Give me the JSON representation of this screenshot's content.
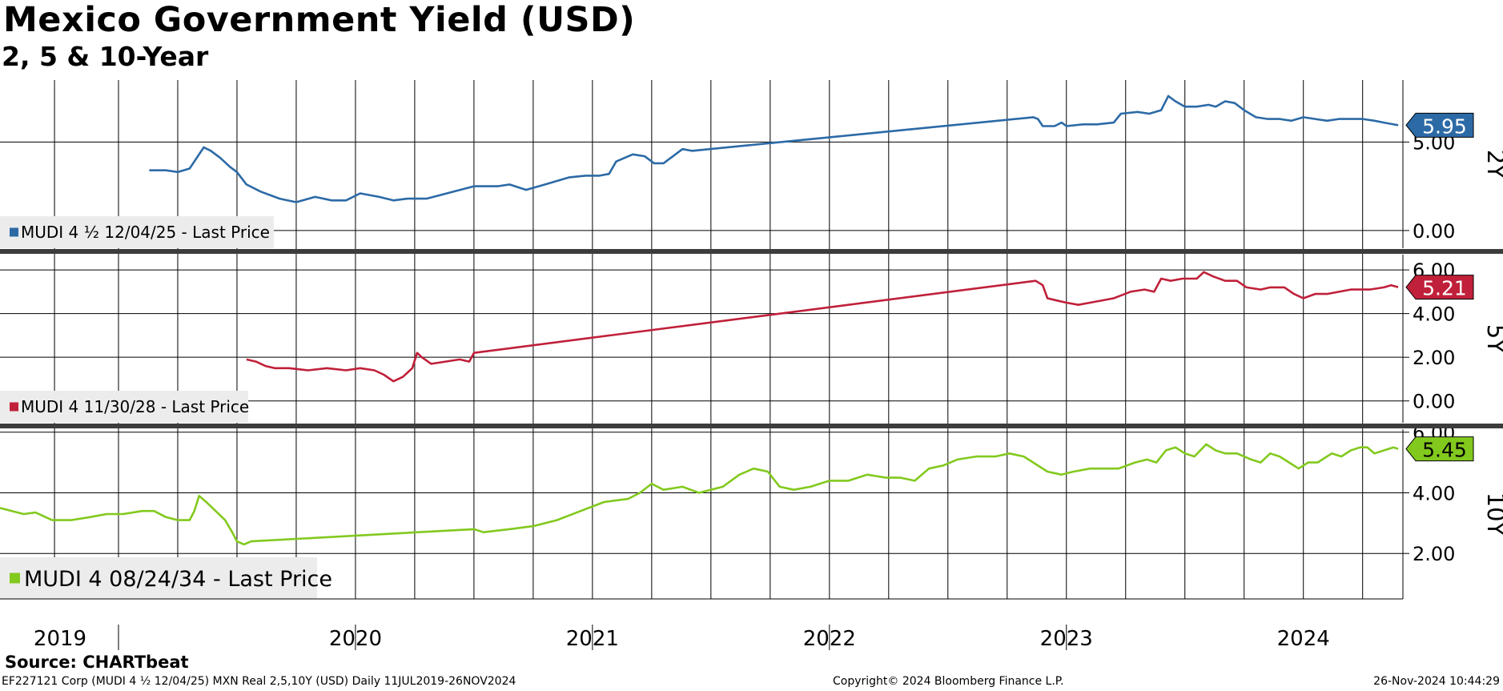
{
  "header": {
    "title": "Mexico Government Yield (USD)",
    "subtitle": "2, 5 & 10-Year",
    "source": "Source: CHARTbeat"
  },
  "footer": {
    "left": "EF227121 Corp (MUDI 4 ½ 12/04/25) MXN Real 2,5,10Y (USD)  Daily 11JUL2019-26NOV2024",
    "center": "Copyright© 2024 Bloomberg Finance L.P.",
    "right": "26-Nov-2024 10:44:29"
  },
  "chart_data": [
    {
      "type": "line",
      "panel_label": "2Y",
      "legend": "MUDI 4 ½ 12/04/25 - Last Price",
      "color": "#2c6aa6",
      "last_value": 5.95,
      "last_label": "5.95",
      "ylim": [
        -1.0,
        8.5
      ],
      "yticks": [
        0.0,
        5.0
      ],
      "ytick_labels": [
        "0.00",
        "5.00"
      ],
      "series": [
        {
          "name": "MUDI 4 ½ 12/04/25",
          "points": [
            [
              2019.63,
              3.4
            ],
            [
              2019.7,
              3.4
            ],
            [
              2019.75,
              3.3
            ],
            [
              2019.8,
              3.5
            ],
            [
              2019.84,
              4.3
            ],
            [
              2019.86,
              4.7
            ],
            [
              2019.89,
              4.5
            ],
            [
              2019.93,
              4.1
            ],
            [
              2019.97,
              3.6
            ],
            [
              2020.0,
              3.3
            ],
            [
              2020.04,
              2.6
            ],
            [
              2020.1,
              2.2
            ],
            [
              2020.18,
              1.8
            ],
            [
              2020.25,
              1.6
            ],
            [
              2020.33,
              1.9
            ],
            [
              2020.4,
              1.7
            ],
            [
              2020.46,
              1.7
            ],
            [
              2020.52,
              2.1
            ],
            [
              2020.6,
              1.9
            ],
            [
              2020.66,
              1.7
            ],
            [
              2020.72,
              1.8
            ],
            [
              2020.8,
              1.8
            ],
            [
              2021.0,
              2.5
            ],
            [
              2021.1,
              2.5
            ],
            [
              2021.15,
              2.6
            ],
            [
              2021.22,
              2.3
            ],
            [
              2021.3,
              2.6
            ],
            [
              2021.35,
              2.8
            ],
            [
              2021.4,
              3.0
            ],
            [
              2021.47,
              3.1
            ],
            [
              2021.53,
              3.1
            ],
            [
              2021.57,
              3.2
            ],
            [
              2021.6,
              3.9
            ],
            [
              2021.67,
              4.3
            ],
            [
              2021.72,
              4.2
            ],
            [
              2021.76,
              3.8
            ],
            [
              2021.8,
              3.8
            ],
            [
              2021.84,
              4.2
            ],
            [
              2021.88,
              4.6
            ],
            [
              2021.92,
              4.5
            ],
            [
              2023.36,
              6.4
            ],
            [
              2023.38,
              6.3
            ],
            [
              2023.4,
              5.9
            ],
            [
              2023.45,
              5.9
            ],
            [
              2023.48,
              6.1
            ],
            [
              2023.5,
              5.9
            ],
            [
              2023.57,
              6.0
            ],
            [
              2023.63,
              6.0
            ],
            [
              2023.7,
              6.1
            ],
            [
              2023.73,
              6.6
            ],
            [
              2023.8,
              6.7
            ],
            [
              2023.85,
              6.6
            ],
            [
              2023.9,
              6.8
            ],
            [
              2023.93,
              7.6
            ],
            [
              2023.96,
              7.3
            ],
            [
              2024.0,
              7.0
            ],
            [
              2024.05,
              7.0
            ],
            [
              2024.1,
              7.1
            ],
            [
              2024.13,
              7.0
            ],
            [
              2024.17,
              7.3
            ],
            [
              2024.21,
              7.2
            ],
            [
              2024.25,
              6.8
            ],
            [
              2024.3,
              6.4
            ],
            [
              2024.35,
              6.3
            ],
            [
              2024.4,
              6.3
            ],
            [
              2024.45,
              6.2
            ],
            [
              2024.5,
              6.4
            ],
            [
              2024.55,
              6.3
            ],
            [
              2024.6,
              6.2
            ],
            [
              2024.65,
              6.3
            ],
            [
              2024.7,
              6.3
            ],
            [
              2024.75,
              6.3
            ],
            [
              2024.8,
              6.2
            ],
            [
              2024.84,
              6.1
            ],
            [
              2024.9,
              5.95
            ]
          ]
        }
      ]
    },
    {
      "type": "line",
      "panel_label": "5Y",
      "legend": "MUDI 4 11/30/28 - Last Price",
      "color": "#c0203a",
      "last_value": 5.21,
      "last_label": "5.21",
      "ylim": [
        -1.0,
        6.7
      ],
      "yticks": [
        0.0,
        2.0,
        4.0,
        6.0
      ],
      "ytick_labels": [
        "0.00",
        "2.00",
        "4.00",
        "6.00"
      ],
      "series": [
        {
          "name": "MUDI 4 11/30/28",
          "points": [
            [
              2020.04,
              1.9
            ],
            [
              2020.08,
              1.8
            ],
            [
              2020.12,
              1.6
            ],
            [
              2020.16,
              1.5
            ],
            [
              2020.22,
              1.5
            ],
            [
              2020.3,
              1.4
            ],
            [
              2020.38,
              1.5
            ],
            [
              2020.46,
              1.4
            ],
            [
              2020.52,
              1.5
            ],
            [
              2020.58,
              1.4
            ],
            [
              2020.62,
              1.2
            ],
            [
              2020.66,
              0.9
            ],
            [
              2020.7,
              1.1
            ],
            [
              2020.74,
              1.5
            ],
            [
              2020.76,
              2.2
            ],
            [
              2020.78,
              2.0
            ],
            [
              2020.82,
              1.7
            ],
            [
              2020.88,
              1.8
            ],
            [
              2020.94,
              1.9
            ],
            [
              2020.98,
              1.8
            ],
            [
              2021.0,
              2.2
            ],
            [
              2023.37,
              5.5
            ],
            [
              2023.4,
              5.3
            ],
            [
              2023.42,
              4.7
            ],
            [
              2023.46,
              4.6
            ],
            [
              2023.5,
              4.5
            ],
            [
              2023.55,
              4.4
            ],
            [
              2023.6,
              4.5
            ],
            [
              2023.7,
              4.7
            ],
            [
              2023.77,
              5.0
            ],
            [
              2023.83,
              5.1
            ],
            [
              2023.87,
              5.0
            ],
            [
              2023.9,
              5.6
            ],
            [
              2023.94,
              5.5
            ],
            [
              2023.99,
              5.6
            ],
            [
              2024.05,
              5.6
            ],
            [
              2024.08,
              5.9
            ],
            [
              2024.12,
              5.7
            ],
            [
              2024.17,
              5.5
            ],
            [
              2024.22,
              5.5
            ],
            [
              2024.26,
              5.2
            ],
            [
              2024.32,
              5.1
            ],
            [
              2024.36,
              5.2
            ],
            [
              2024.42,
              5.2
            ],
            [
              2024.46,
              4.9
            ],
            [
              2024.5,
              4.7
            ],
            [
              2024.55,
              4.9
            ],
            [
              2024.6,
              4.9
            ],
            [
              2024.65,
              5.0
            ],
            [
              2024.7,
              5.1
            ],
            [
              2024.78,
              5.1
            ],
            [
              2024.84,
              5.2
            ],
            [
              2024.87,
              5.3
            ],
            [
              2024.9,
              5.21
            ]
          ]
        }
      ]
    },
    {
      "type": "line",
      "panel_label": "10Y",
      "legend": "MUDI 4 08/24/34 - Last Price",
      "color": "#82c91e",
      "last_value": 5.45,
      "last_label": "5.45",
      "ylim": [
        0.5,
        6.1
      ],
      "yticks": [
        2.0,
        4.0,
        6.0
      ],
      "ytick_labels": [
        "2.00",
        "4.00",
        "6.00"
      ],
      "series": [
        {
          "name": "MUDI 4 08/24/34",
          "points": [
            [
              2019.0,
              3.5
            ],
            [
              2019.05,
              3.4
            ],
            [
              2019.1,
              3.3
            ],
            [
              2019.15,
              3.35
            ],
            [
              2019.22,
              3.1
            ],
            [
              2019.3,
              3.1
            ],
            [
              2019.38,
              3.2
            ],
            [
              2019.45,
              3.3
            ],
            [
              2019.52,
              3.3
            ],
            [
              2019.6,
              3.4
            ],
            [
              2019.65,
              3.4
            ],
            [
              2019.7,
              3.2
            ],
            [
              2019.75,
              3.1
            ],
            [
              2019.8,
              3.1
            ],
            [
              2019.82,
              3.4
            ],
            [
              2019.84,
              3.9
            ],
            [
              2019.87,
              3.7
            ],
            [
              2019.91,
              3.4
            ],
            [
              2019.95,
              3.1
            ],
            [
              2019.98,
              2.7
            ],
            [
              2020.0,
              2.4
            ],
            [
              2020.03,
              2.3
            ],
            [
              2020.06,
              2.4
            ],
            [
              2021.0,
              2.8
            ],
            [
              2021.04,
              2.7
            ],
            [
              2021.15,
              2.8
            ],
            [
              2021.25,
              2.9
            ],
            [
              2021.35,
              3.1
            ],
            [
              2021.45,
              3.4
            ],
            [
              2021.55,
              3.7
            ],
            [
              2021.65,
              3.8
            ],
            [
              2021.7,
              4.0
            ],
            [
              2021.75,
              4.3
            ],
            [
              2021.8,
              4.1
            ],
            [
              2021.88,
              4.2
            ],
            [
              2021.95,
              4.0
            ],
            [
              2022.05,
              4.2
            ],
            [
              2022.12,
              4.6
            ],
            [
              2022.18,
              4.8
            ],
            [
              2022.24,
              4.7
            ],
            [
              2022.29,
              4.2
            ],
            [
              2022.35,
              4.1
            ],
            [
              2022.42,
              4.2
            ],
            [
              2022.5,
              4.4
            ],
            [
              2022.58,
              4.4
            ],
            [
              2022.66,
              4.6
            ],
            [
              2022.74,
              4.5
            ],
            [
              2022.8,
              4.5
            ],
            [
              2022.86,
              4.4
            ],
            [
              2022.92,
              4.8
            ],
            [
              2022.98,
              4.9
            ],
            [
              2023.04,
              5.1
            ],
            [
              2023.12,
              5.2
            ],
            [
              2023.2,
              5.2
            ],
            [
              2023.26,
              5.3
            ],
            [
              2023.32,
              5.2
            ],
            [
              2023.36,
              5.0
            ],
            [
              2023.42,
              4.7
            ],
            [
              2023.48,
              4.6
            ],
            [
              2023.53,
              4.7
            ],
            [
              2023.6,
              4.8
            ],
            [
              2023.66,
              4.8
            ],
            [
              2023.72,
              4.8
            ],
            [
              2023.79,
              5.0
            ],
            [
              2023.84,
              5.1
            ],
            [
              2023.88,
              5.0
            ],
            [
              2023.92,
              5.4
            ],
            [
              2023.96,
              5.5
            ],
            [
              2024.0,
              5.3
            ],
            [
              2024.04,
              5.2
            ],
            [
              2024.09,
              5.6
            ],
            [
              2024.13,
              5.4
            ],
            [
              2024.17,
              5.3
            ],
            [
              2024.22,
              5.3
            ],
            [
              2024.28,
              5.1
            ],
            [
              2024.32,
              5.0
            ],
            [
              2024.36,
              5.3
            ],
            [
              2024.4,
              5.2
            ],
            [
              2024.44,
              5.0
            ],
            [
              2024.48,
              4.8
            ],
            [
              2024.52,
              5.0
            ],
            [
              2024.56,
              5.0
            ],
            [
              2024.62,
              5.3
            ],
            [
              2024.66,
              5.2
            ],
            [
              2024.7,
              5.4
            ],
            [
              2024.74,
              5.5
            ],
            [
              2024.77,
              5.5
            ],
            [
              2024.8,
              5.3
            ],
            [
              2024.84,
              5.4
            ],
            [
              2024.88,
              5.5
            ],
            [
              2024.9,
              5.45
            ]
          ]
        }
      ]
    }
  ],
  "x_axis": {
    "xlim": [
      2019.0,
      2024.92
    ],
    "year_labels": [
      "2019",
      "2020",
      "2021",
      "2022",
      "2023",
      "2024"
    ],
    "year_label_positions": [
      2019.23,
      2020.0,
      2021.0,
      2022.0,
      2023.0,
      2024.0
    ],
    "year_label_centers": [
      2019.23,
      2020.5,
      2021.5,
      2022.5,
      2023.5,
      2024.5
    ],
    "year_separators": [
      2019.5,
      2020.5,
      2021.5,
      2022.5,
      2023.5
    ],
    "gridlines": [
      2019.23,
      2019.5,
      2019.75,
      2020.0,
      2020.25,
      2020.5,
      2020.75,
      2021.0,
      2021.25,
      2021.5,
      2021.75,
      2022.0,
      2022.25,
      2022.5,
      2022.75,
      2023.0,
      2023.25,
      2023.5,
      2023.75,
      2024.0,
      2024.25,
      2024.5,
      2024.75
    ]
  }
}
